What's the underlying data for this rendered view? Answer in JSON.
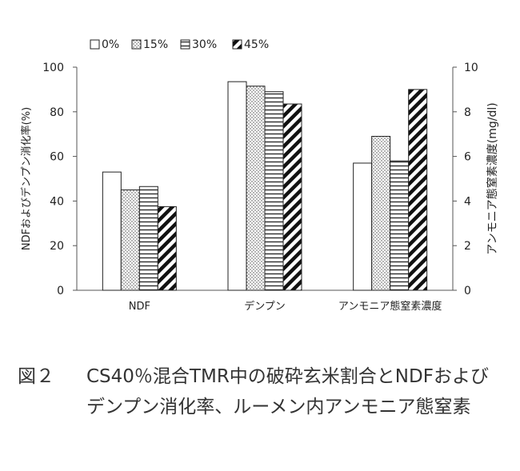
{
  "chart_data": {
    "type": "bar",
    "categories": [
      "NDF",
      "デンプン",
      "アンモニア態窒素濃度"
    ],
    "series": [
      {
        "name": "0%",
        "pattern": "none",
        "values": [
          53,
          93.5,
          5.7
        ]
      },
      {
        "name": "15%",
        "pattern": "dots",
        "values": [
          45,
          91.5,
          6.9
        ]
      },
      {
        "name": "30%",
        "pattern": "hlines",
        "values": [
          46.5,
          89,
          5.8
        ]
      },
      {
        "name": "45%",
        "pattern": "diagonal",
        "values": [
          37.5,
          83.5,
          9.0
        ]
      }
    ],
    "ylabel_left": "NDFおよびデンプン消化率(%)",
    "ylabel_right": "アンモニア態窒素濃度(mg/dl)",
    "ylim_left": [
      0,
      100
    ],
    "ylim_right": [
      0,
      10
    ],
    "yticks_left": [
      "0",
      "20",
      "40",
      "60",
      "80",
      "100"
    ],
    "yticks_right": [
      "0",
      "2",
      "4",
      "6",
      "8",
      "10"
    ],
    "right_axis_categories": [
      "アンモニア態窒素濃度"
    ],
    "legend_position": "top",
    "grid": false
  },
  "caption": {
    "label": "図２",
    "text": "CS40％混合TMR中の破砕玄米割合とNDFおよびデンプン消化率、ルーメン内アンモニア態窒素"
  }
}
